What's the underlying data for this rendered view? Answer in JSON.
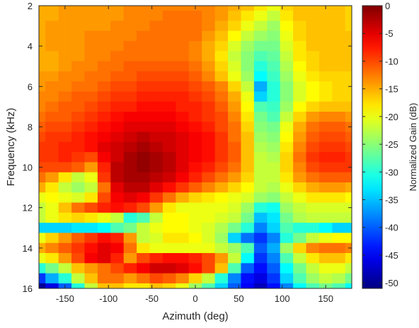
{
  "chart_data": {
    "type": "heatmap",
    "xlabel": "Azimuth (deg)",
    "ylabel": "Frequency (kHz)",
    "colorbar_label": "Normalized Gain (dB)",
    "xlim": [
      -180,
      180
    ],
    "ylim": [
      2,
      16
    ],
    "y_reversed": true,
    "clim": [
      -51,
      0
    ],
    "colormap": "jet",
    "xticks": [
      -150,
      -100,
      -50,
      0,
      50,
      100,
      150
    ],
    "yticks": [
      2,
      4,
      6,
      8,
      10,
      12,
      14,
      16
    ],
    "colorbar_ticks": [
      0,
      -5,
      -10,
      -15,
      -20,
      -25,
      -30,
      -35,
      -40,
      -45,
      -50
    ],
    "azimuth": [
      -180,
      -165,
      -150,
      -135,
      -120,
      -105,
      -90,
      -75,
      -60,
      -45,
      -30,
      -15,
      0,
      15,
      30,
      45,
      60,
      75,
      90,
      105,
      120,
      135,
      150,
      165,
      180
    ],
    "frequency": [
      2,
      2.5,
      3,
      3.5,
      4,
      4.5,
      5,
      5.5,
      6,
      6.5,
      7,
      7.5,
      8,
      8.5,
      9,
      9.5,
      10,
      10.5,
      11,
      11.5,
      12,
      12.5,
      13,
      13.5,
      14,
      14.5,
      15,
      15.5,
      16
    ],
    "gain_db": [
      [
        -15,
        -15,
        -14,
        -14,
        -14,
        -14,
        -14,
        -13,
        -13,
        -13,
        -13,
        -13,
        -13,
        -13,
        -14,
        -15,
        -16,
        -18,
        -20,
        -17,
        -16,
        -16,
        -16,
        -16,
        -17
      ],
      [
        -15,
        -15,
        -14,
        -14,
        -14,
        -14,
        -14,
        -13,
        -13,
        -13,
        -12,
        -12,
        -12,
        -13,
        -14,
        -16,
        -18,
        -20,
        -22,
        -18,
        -16,
        -16,
        -16,
        -16,
        -17
      ],
      [
        -15,
        -14,
        -14,
        -14,
        -14,
        -14,
        -13,
        -13,
        -13,
        -12,
        -12,
        -12,
        -12,
        -13,
        -15,
        -17,
        -20,
        -22,
        -24,
        -19,
        -17,
        -16,
        -16,
        -16,
        -17
      ],
      [
        -15,
        -14,
        -14,
        -14,
        -13,
        -13,
        -13,
        -13,
        -12,
        -12,
        -12,
        -12,
        -12,
        -14,
        -16,
        -19,
        -22,
        -24,
        -25,
        -20,
        -17,
        -16,
        -16,
        -16,
        -16
      ],
      [
        -15,
        -14,
        -14,
        -14,
        -13,
        -13,
        -13,
        -12,
        -12,
        -12,
        -12,
        -12,
        -13,
        -15,
        -17,
        -21,
        -24,
        -26,
        -26,
        -21,
        -18,
        -16,
        -16,
        -16,
        -16
      ],
      [
        -15,
        -15,
        -14,
        -14,
        -13,
        -13,
        -12,
        -12,
        -12,
        -12,
        -12,
        -12,
        -13,
        -15,
        -18,
        -22,
        -25,
        -28,
        -27,
        -22,
        -18,
        -17,
        -16,
        -16,
        -16
      ],
      [
        -15,
        -15,
        -14,
        -13,
        -13,
        -12,
        -12,
        -11,
        -11,
        -11,
        -11,
        -11,
        -12,
        -14,
        -17,
        -21,
        -25,
        -30,
        -28,
        -23,
        -19,
        -17,
        -16,
        -16,
        -16
      ],
      [
        -14,
        -14,
        -13,
        -13,
        -12,
        -12,
        -11,
        -11,
        -10,
        -10,
        -10,
        -10,
        -11,
        -13,
        -16,
        -20,
        -24,
        -32,
        -29,
        -24,
        -20,
        -18,
        -17,
        -17,
        -17
      ],
      [
        -14,
        -13,
        -13,
        -12,
        -12,
        -11,
        -10,
        -10,
        -9,
        -9,
        -9,
        -9,
        -10,
        -11,
        -13,
        -17,
        -22,
        -36,
        -30,
        -25,
        -21,
        -19,
        -18,
        -17,
        -17
      ],
      [
        -13,
        -13,
        -12,
        -11,
        -11,
        -10,
        -9,
        -9,
        -8,
        -8,
        -8,
        -8,
        -9,
        -10,
        -12,
        -15,
        -20,
        -34,
        -30,
        -25,
        -21,
        -19,
        -18,
        -17,
        -17
      ],
      [
        -13,
        -12,
        -11,
        -11,
        -10,
        -9,
        -8,
        -8,
        -7,
        -7,
        -7,
        -8,
        -8,
        -9,
        -11,
        -14,
        -19,
        -28,
        -29,
        -24,
        -19,
        -17,
        -16,
        -16,
        -16
      ],
      [
        -12,
        -11,
        -11,
        -10,
        -9,
        -8,
        -7,
        -6,
        -6,
        -6,
        -6,
        -7,
        -8,
        -9,
        -10,
        -13,
        -18,
        -26,
        -28,
        -22,
        -17,
        -14,
        -13,
        -13,
        -14
      ],
      [
        -11,
        -10,
        -10,
        -9,
        -8,
        -7,
        -6,
        -5,
        -5,
        -5,
        -5,
        -6,
        -7,
        -8,
        -10,
        -12,
        -17,
        -25,
        -26,
        -20,
        -15,
        -12,
        -11,
        -11,
        -12
      ],
      [
        -10,
        -9,
        -9,
        -8,
        -7,
        -6,
        -5,
        -4,
        -3,
        -4,
        -4,
        -5,
        -6,
        -7,
        -9,
        -12,
        -16,
        -24,
        -25,
        -19,
        -14,
        -11,
        -10,
        -10,
        -11
      ],
      [
        -9,
        -9,
        -8,
        -8,
        -7,
        -5,
        -4,
        -3,
        -2,
        -3,
        -4,
        -5,
        -6,
        -7,
        -9,
        -11,
        -16,
        -23,
        -24,
        -18,
        -13,
        -10,
        -9,
        -9,
        -10
      ],
      [
        -9,
        -9,
        -8,
        -9,
        -10,
        -6,
        -4,
        -2,
        -1,
        -2,
        -3,
        -5,
        -6,
        -7,
        -9,
        -11,
        -16,
        -22,
        -23,
        -17,
        -12,
        -9,
        -8,
        -8,
        -9
      ],
      [
        -10,
        -10,
        -10,
        -11,
        -14,
        -8,
        -3,
        -2,
        -1,
        -2,
        -3,
        -5,
        -7,
        -8,
        -10,
        -12,
        -16,
        -22,
        -22,
        -17,
        -13,
        -10,
        -9,
        -9,
        -9
      ],
      [
        -12,
        -14,
        -18,
        -22,
        -20,
        -9,
        -3,
        -2,
        -2,
        -3,
        -4,
        -6,
        -8,
        -10,
        -12,
        -14,
        -17,
        -22,
        -22,
        -18,
        -14,
        -12,
        -11,
        -11,
        -11
      ],
      [
        -15,
        -18,
        -22,
        -24,
        -22,
        -12,
        -5,
        -3,
        -3,
        -5,
        -7,
        -9,
        -11,
        -13,
        -15,
        -17,
        -19,
        -22,
        -23,
        -20,
        -17,
        -15,
        -14,
        -14,
        -15
      ],
      [
        -20,
        -19,
        -20,
        -21,
        -18,
        -10,
        -6,
        -5,
        -6,
        -9,
        -12,
        -15,
        -17,
        -18,
        -19,
        -20,
        -21,
        -24,
        -25,
        -22,
        -20,
        -18,
        -18,
        -18,
        -19
      ],
      [
        -22,
        -20,
        -16,
        -12,
        -10,
        -8,
        -7,
        -8,
        -10,
        -14,
        -18,
        -20,
        -20,
        -20,
        -20,
        -21,
        -24,
        -30,
        -31,
        -24,
        -22,
        -21,
        -21,
        -21,
        -21
      ],
      [
        -22,
        -20,
        -18,
        -17,
        -18,
        -20,
        -22,
        -30,
        -28,
        -22,
        -19,
        -19,
        -20,
        -20,
        -21,
        -22,
        -26,
        -35,
        -33,
        -26,
        -23,
        -22,
        -22,
        -22,
        -22
      ],
      [
        -34,
        -34,
        -34,
        -33,
        -33,
        -32,
        -28,
        -26,
        -22,
        -20,
        -19,
        -19,
        -20,
        -21,
        -23,
        -26,
        -30,
        -38,
        -34,
        -28,
        -30,
        -30,
        -32,
        -34,
        -34
      ],
      [
        -20,
        -17,
        -14,
        -11,
        -9,
        -7,
        -8,
        -14,
        -22,
        -21,
        -18,
        -18,
        -19,
        -21,
        -24,
        -34,
        -39,
        -42,
        -38,
        -30,
        -26,
        -22,
        -20,
        -19,
        -19
      ],
      [
        -15,
        -13,
        -11,
        -9,
        -7,
        -5,
        -6,
        -12,
        -18,
        -20,
        -20,
        -20,
        -20,
        -20,
        -22,
        -24,
        -28,
        -40,
        -36,
        -24,
        -17,
        -13,
        -12,
        -12,
        -13
      ],
      [
        -20,
        -18,
        -14,
        -10,
        -6,
        -5,
        -8,
        -14,
        -10,
        -8,
        -7,
        -7,
        -8,
        -10,
        -14,
        -22,
        -32,
        -42,
        -38,
        -28,
        -22,
        -18,
        -16,
        -16,
        -18
      ],
      [
        -30,
        -26,
        -22,
        -16,
        -14,
        -12,
        -10,
        -8,
        -6,
        -4,
        -4,
        -5,
        -7,
        -10,
        -16,
        -28,
        -40,
        -44,
        -40,
        -32,
        -26,
        -22,
        -20,
        -20,
        -22
      ],
      [
        -42,
        -36,
        -30,
        -22,
        -16,
        -12,
        -12,
        -14,
        -12,
        -10,
        -11,
        -13,
        -17,
        -22,
        -30,
        -38,
        -44,
        -46,
        -42,
        -34,
        -28,
        -24,
        -22,
        -23,
        -26
      ],
      [
        -50,
        -46,
        -40,
        -30,
        -22,
        -16,
        -16,
        -18,
        -18,
        -16,
        -17,
        -20,
        -24,
        -28,
        -34,
        -40,
        -45,
        -48,
        -44,
        -38,
        -32,
        -28,
        -26,
        -28,
        -32
      ]
    ]
  }
}
